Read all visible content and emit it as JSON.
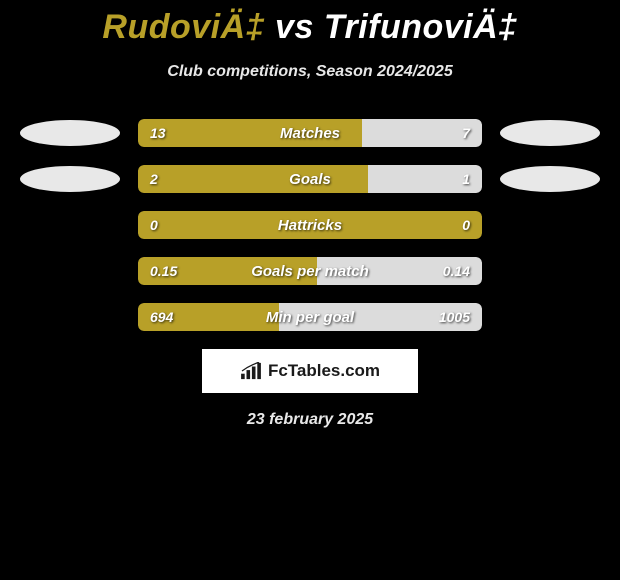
{
  "title": {
    "player1": "RudoviÄ‡",
    "vs": "vs",
    "player2": "TrifunoviÄ‡",
    "p1_color": "#b8a028",
    "p2_color": "#ffffff"
  },
  "subtitle": "Club competitions, Season 2024/2025",
  "stats": [
    {
      "label": "Matches",
      "left_val": "13",
      "right_val": "7",
      "left_pct": 65,
      "right_pct": 35,
      "left_color": "#b8a028",
      "right_color": "#dcdcdc",
      "show_ellipses": true
    },
    {
      "label": "Goals",
      "left_val": "2",
      "right_val": "1",
      "left_pct": 67,
      "right_pct": 33,
      "left_color": "#b8a028",
      "right_color": "#dcdcdc",
      "show_ellipses": true
    },
    {
      "label": "Hattricks",
      "left_val": "0",
      "right_val": "0",
      "left_pct": 100,
      "right_pct": 0,
      "left_color": "#b8a028",
      "right_color": "#dcdcdc",
      "show_ellipses": false
    },
    {
      "label": "Goals per match",
      "left_val": "0.15",
      "right_val": "0.14",
      "left_pct": 52,
      "right_pct": 48,
      "left_color": "#b8a028",
      "right_color": "#dcdcdc",
      "show_ellipses": false
    },
    {
      "label": "Min per goal",
      "left_val": "694",
      "right_val": "1005",
      "left_pct": 41,
      "right_pct": 59,
      "left_color": "#b8a028",
      "right_color": "#dcdcdc",
      "show_ellipses": false
    }
  ],
  "brand": {
    "text": "FcTables.com",
    "icon_color": "#1a1a1a"
  },
  "date": "23 february 2025",
  "colors": {
    "background": "#000000",
    "text": "#ffffff",
    "subtitle": "#e8e8e8",
    "accent": "#b8a028",
    "bar_secondary": "#dcdcdc",
    "ellipse": "#e8e8e8"
  }
}
